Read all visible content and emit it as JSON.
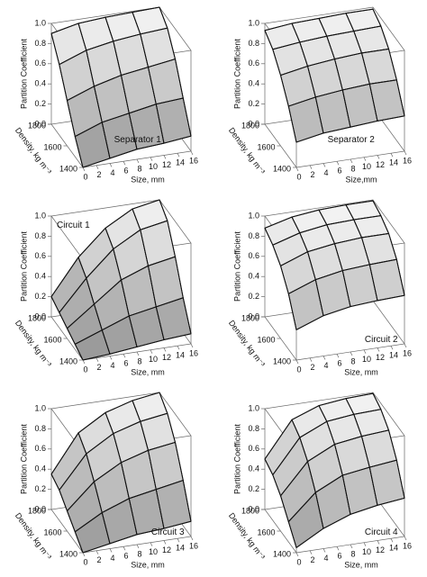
{
  "chart_data": [
    {
      "type": "surface",
      "label": "Separator 1",
      "label_corner": "middle-right",
      "xlabel": "Size, mm",
      "ylabel": "Density, kg m⁻³",
      "zlabel": "Partition Coefficient",
      "x": [
        0,
        4,
        8,
        12,
        16
      ],
      "y": [
        1400,
        1500,
        1600,
        1700,
        1800
      ],
      "z": [
        [
          0.0,
          0.05,
          0.1,
          0.12,
          0.15
        ],
        [
          0.2,
          0.3,
          0.35,
          0.4,
          0.42
        ],
        [
          0.45,
          0.55,
          0.62,
          0.66,
          0.7
        ],
        [
          0.7,
          0.8,
          0.85,
          0.88,
          0.9
        ],
        [
          0.9,
          0.96,
          0.98,
          0.99,
          1.0
        ]
      ],
      "xlim": [
        0,
        16
      ],
      "ylim": [
        1400,
        1800
      ],
      "zlim": [
        0,
        1
      ],
      "xticks": [
        0,
        2,
        4,
        6,
        8,
        10,
        12,
        14,
        16
      ],
      "yticks": [
        1400,
        1600,
        1800
      ],
      "zticks": [
        {
          "value": 0,
          "label": "0.0"
        },
        0.2,
        0.4,
        0.6,
        0.8,
        {
          "value": 1,
          "label": "1.0"
        }
      ]
    },
    {
      "type": "surface",
      "label": "Separator 2",
      "label_corner": "middle-right",
      "xlabel": "Size,mm",
      "ylabel": "Density, kg m⁻³",
      "zlabel": "Partition Coefficient",
      "x": [
        0,
        4,
        8,
        12,
        16
      ],
      "y": [
        1400,
        1500,
        1600,
        1700,
        1800
      ],
      "z": [
        [
          0.25,
          0.3,
          0.32,
          0.34,
          0.35
        ],
        [
          0.5,
          0.55,
          0.58,
          0.6,
          0.6
        ],
        [
          0.7,
          0.75,
          0.78,
          0.8,
          0.8
        ],
        [
          0.85,
          0.88,
          0.9,
          0.91,
          0.92
        ],
        [
          0.93,
          0.96,
          0.97,
          0.98,
          0.98
        ]
      ],
      "xlim": [
        0,
        16
      ],
      "ylim": [
        1400,
        1800
      ],
      "zlim": [
        0,
        1
      ],
      "xticks": [
        0,
        2,
        4,
        6,
        8,
        10,
        12,
        14,
        16
      ],
      "yticks": [
        1400,
        1600,
        1800
      ],
      "zticks": [
        {
          "value": 0,
          "label": "0.0"
        },
        0.2,
        0.4,
        0.6,
        0.8,
        {
          "value": 1,
          "label": "1.0"
        }
      ]
    },
    {
      "type": "surface",
      "label": "Circuit 1",
      "label_corner": "top-left",
      "xlabel": "Size, mm",
      "ylabel": "Density, kg m⁻³",
      "zlabel": "Partition Coefficient",
      "x": [
        0,
        4,
        8,
        12,
        16
      ],
      "y": [
        1400,
        1500,
        1600,
        1700,
        1800
      ],
      "z": [
        [
          0.0,
          0.02,
          0.05,
          0.08,
          0.1
        ],
        [
          0.05,
          0.15,
          0.25,
          0.3,
          0.35
        ],
        [
          0.1,
          0.3,
          0.5,
          0.6,
          0.65
        ],
        [
          0.15,
          0.45,
          0.7,
          0.85,
          0.9
        ],
        [
          0.2,
          0.55,
          0.8,
          0.95,
          1.0
        ]
      ],
      "xlim": [
        0,
        16
      ],
      "ylim": [
        1400,
        1800
      ],
      "zlim": [
        0,
        1
      ],
      "xticks": [
        0,
        2,
        4,
        6,
        8,
        10,
        12,
        14,
        16
      ],
      "yticks": [
        1400,
        1600,
        1800
      ],
      "zticks": [
        {
          "value": 0,
          "label": "0.0"
        },
        0.2,
        0.4,
        0.6,
        0.8,
        {
          "value": 1,
          "label": "1.0"
        }
      ]
    },
    {
      "type": "surface",
      "label": "Circuit 2",
      "label_corner": "bottom-right",
      "xlabel": "Size, mm",
      "ylabel": "Density, kg m⁻³",
      "zlabel": "Partition Coefficient",
      "x": [
        0,
        4,
        8,
        12,
        16
      ],
      "y": [
        1400,
        1500,
        1600,
        1700,
        1800
      ],
      "z": [
        [
          0.3,
          0.4,
          0.45,
          0.47,
          0.48
        ],
        [
          0.55,
          0.65,
          0.7,
          0.72,
          0.73
        ],
        [
          0.72,
          0.82,
          0.86,
          0.88,
          0.88
        ],
        [
          0.82,
          0.9,
          0.94,
          0.95,
          0.95
        ],
        [
          0.88,
          0.95,
          0.98,
          0.99,
          0.99
        ]
      ],
      "xlim": [
        0,
        16
      ],
      "ylim": [
        1400,
        1800
      ],
      "zlim": [
        0,
        1
      ],
      "xticks": [
        0,
        2,
        4,
        6,
        8,
        10,
        12,
        14,
        16
      ],
      "yticks": [
        1400,
        1600,
        1800
      ],
      "zticks": [
        {
          "value": 0,
          "label": "0.0"
        },
        0.2,
        0.4,
        0.6,
        0.8,
        {
          "value": 1,
          "label": "1.0"
        }
      ]
    },
    {
      "type": "surface",
      "label": "Circuit 3",
      "label_corner": "bottom-right",
      "xlabel": "Size, mm",
      "ylabel": "Density, kg m⁻³",
      "zlabel": "Partition Coefficient",
      "x": [
        0,
        4,
        8,
        12,
        16
      ],
      "y": [
        1400,
        1500,
        1600,
        1700,
        1800
      ],
      "z": [
        [
          0.0,
          0.05,
          0.1,
          0.12,
          0.15
        ],
        [
          0.1,
          0.25,
          0.35,
          0.4,
          0.45
        ],
        [
          0.2,
          0.45,
          0.6,
          0.68,
          0.72
        ],
        [
          0.3,
          0.62,
          0.78,
          0.86,
          0.9
        ],
        [
          0.35,
          0.72,
          0.88,
          0.96,
          1.0
        ]
      ],
      "xlim": [
        0,
        16
      ],
      "ylim": [
        1400,
        1800
      ],
      "zlim": [
        0,
        1
      ],
      "xticks": [
        0,
        2,
        4,
        6,
        8,
        10,
        12,
        14,
        16
      ],
      "yticks": [
        1400,
        1600,
        1800
      ],
      "zticks": [
        {
          "value": 0,
          "label": "0.0"
        },
        0.2,
        0.4,
        0.6,
        0.8,
        {
          "value": 1,
          "label": "1.0"
        }
      ]
    },
    {
      "type": "surface",
      "label": "Circuit 4",
      "label_corner": "bottom-right",
      "xlabel": "Size, mm",
      "ylabel": "Density, kg m⁻³",
      "zlabel": "Partition Coefficient",
      "x": [
        0,
        4,
        8,
        12,
        16
      ],
      "y": [
        1400,
        1500,
        1600,
        1700,
        1800
      ],
      "z": [
        [
          0.05,
          0.2,
          0.3,
          0.35,
          0.38
        ],
        [
          0.2,
          0.45,
          0.58,
          0.62,
          0.65
        ],
        [
          0.35,
          0.65,
          0.78,
          0.82,
          0.84
        ],
        [
          0.45,
          0.78,
          0.9,
          0.93,
          0.94
        ],
        [
          0.5,
          0.85,
          0.95,
          0.98,
          0.99
        ]
      ],
      "xlim": [
        0,
        16
      ],
      "ylim": [
        1400,
        1800
      ],
      "zlim": [
        0,
        1
      ],
      "xticks": [
        0,
        2,
        4,
        6,
        8,
        10,
        12,
        14,
        16
      ],
      "yticks": [
        1400,
        1600,
        1800
      ],
      "zticks": [
        {
          "value": 0,
          "label": "0.0"
        },
        0.2,
        0.4,
        0.6,
        0.8,
        {
          "value": 1,
          "label": "1.0"
        }
      ]
    }
  ]
}
